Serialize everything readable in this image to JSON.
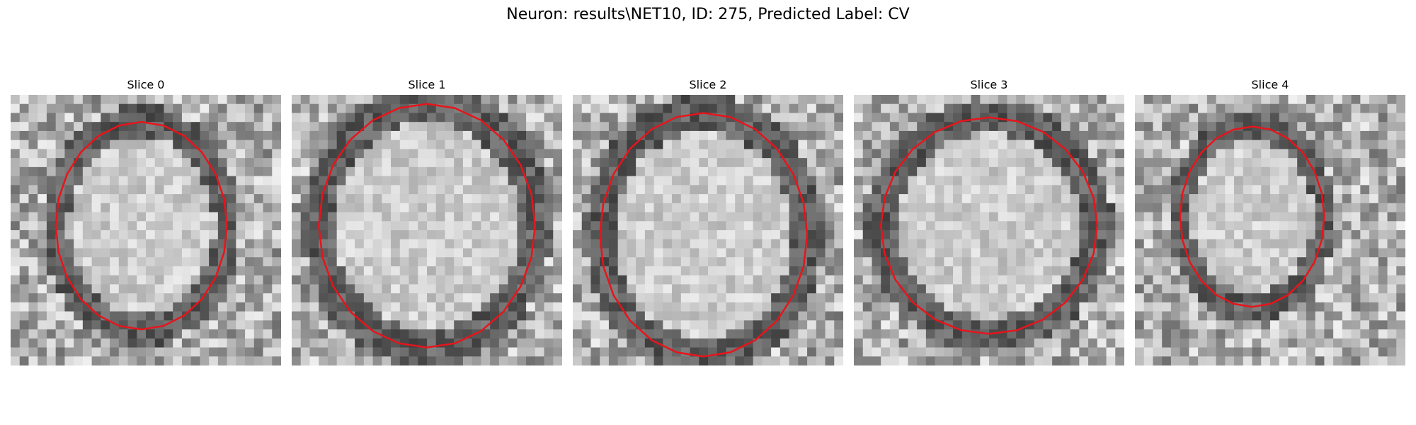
{
  "figure": {
    "suptitle": "Neuron: results\\NET10, ID: 275, Predicted Label: CV"
  },
  "panels": [
    {
      "title": "Slice 0",
      "image": "grayscale-em-slice",
      "contour_color": "#e8141b"
    },
    {
      "title": "Slice 1",
      "image": "grayscale-em-slice",
      "contour_color": "#e8141b"
    },
    {
      "title": "Slice 2",
      "image": "grayscale-em-slice",
      "contour_color": "#e8141b"
    },
    {
      "title": "Slice 3",
      "image": "grayscale-em-slice",
      "contour_color": "#e8141b"
    },
    {
      "title": "Slice 4",
      "image": "grayscale-em-slice",
      "contour_color": "#e8141b"
    }
  ]
}
